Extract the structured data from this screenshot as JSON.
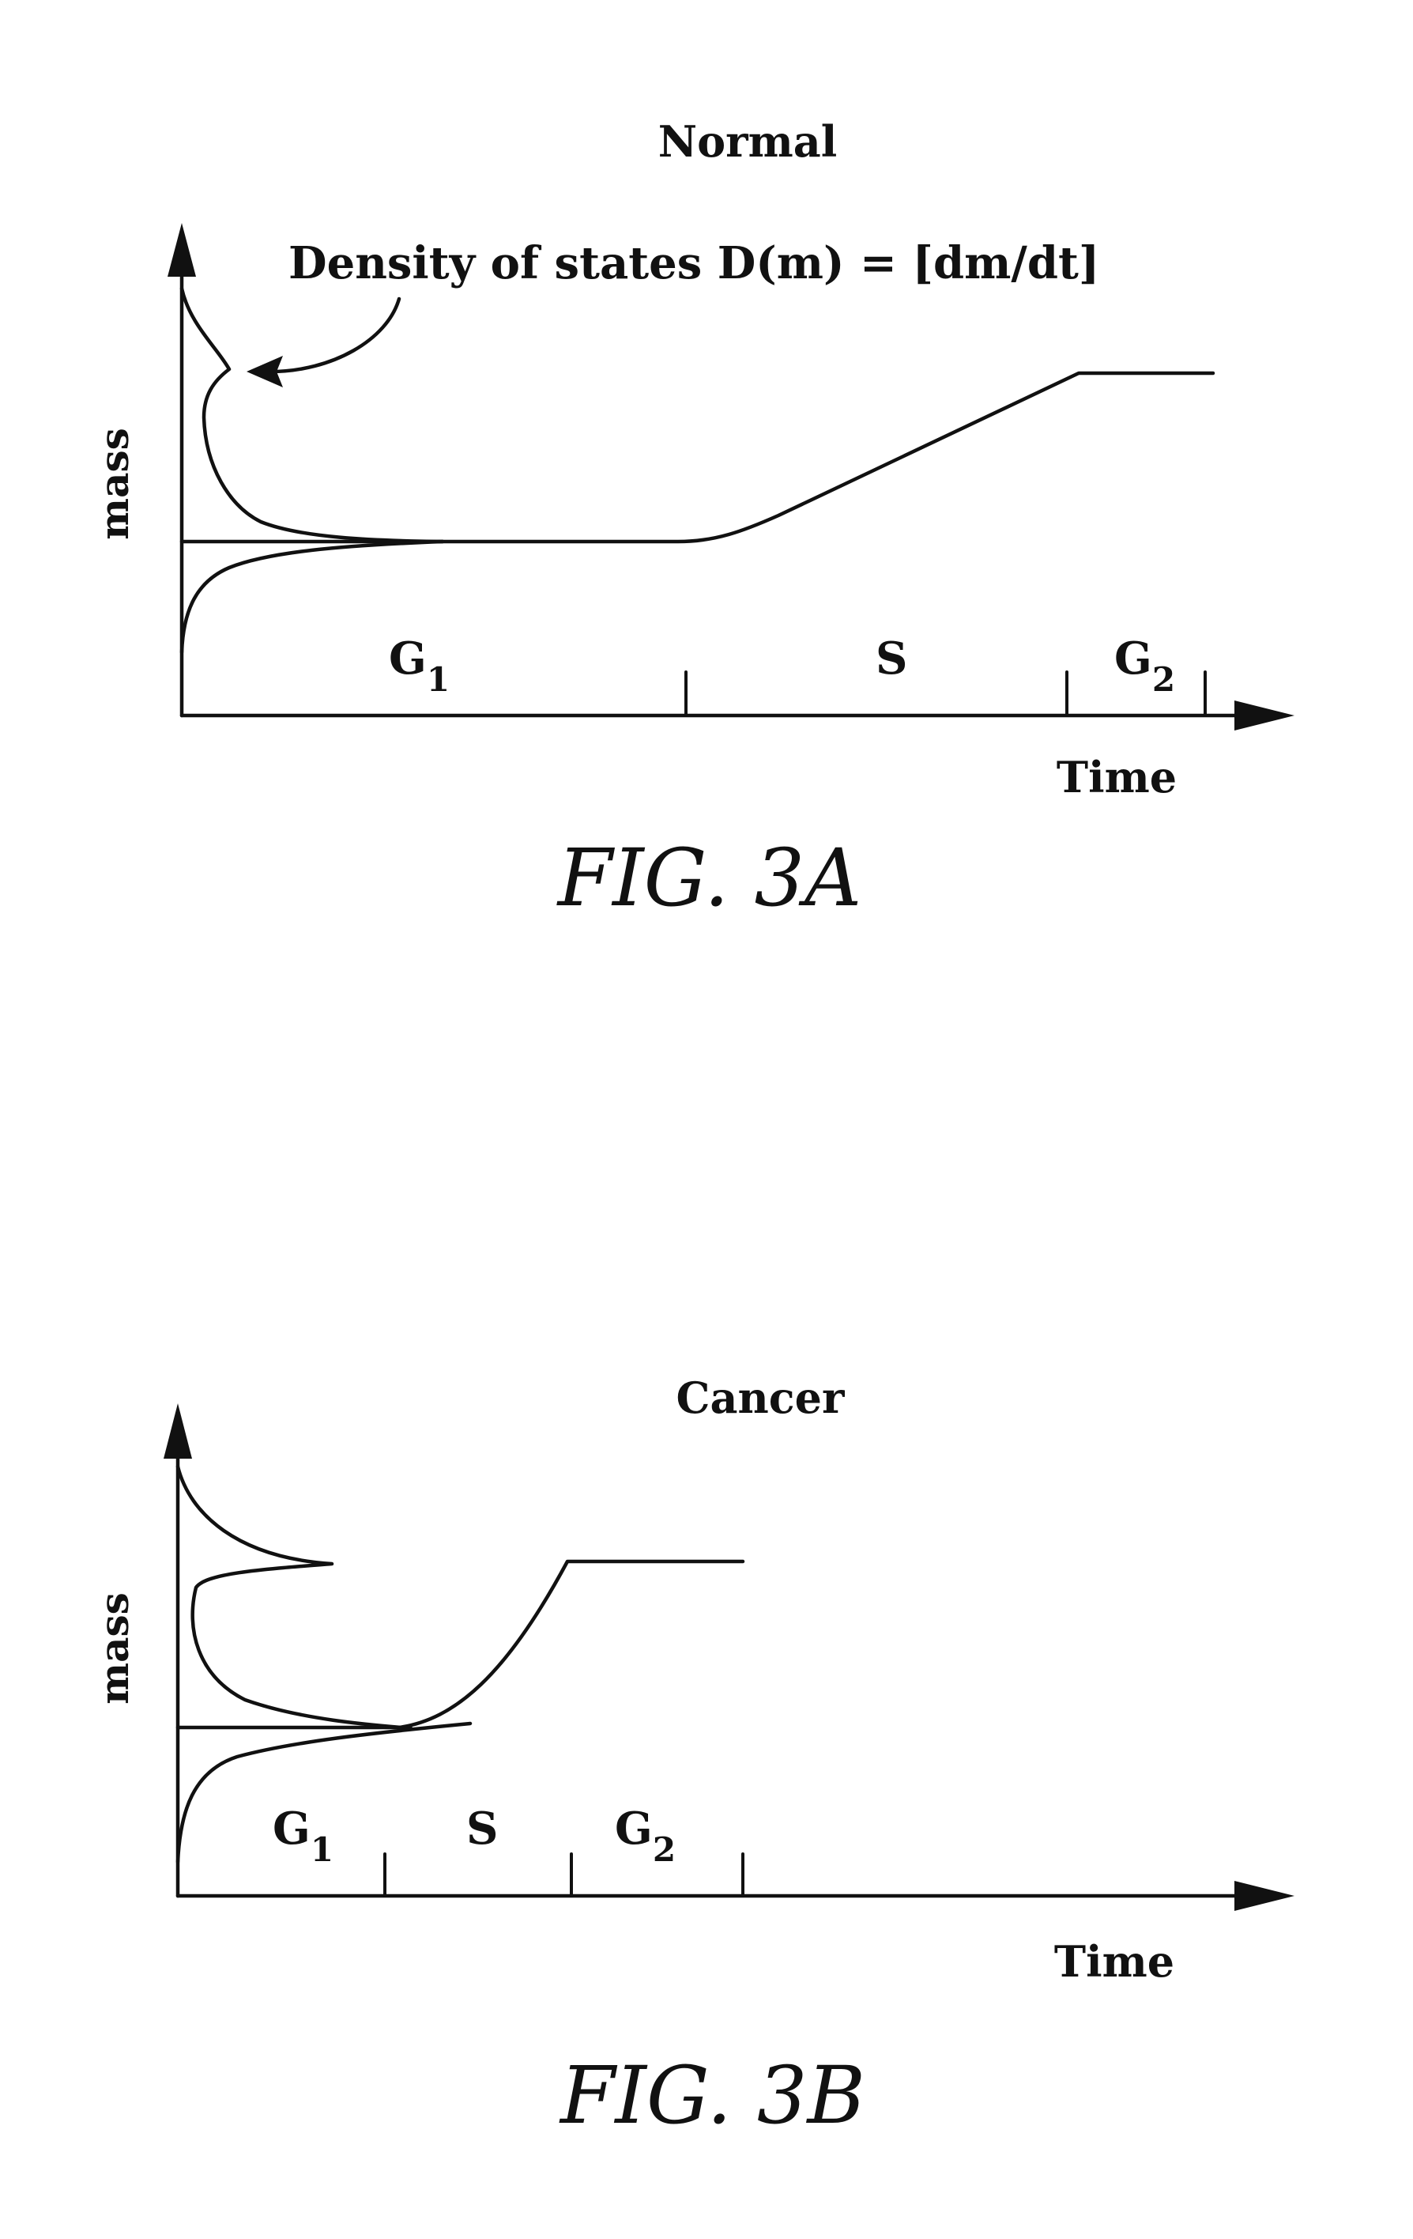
{
  "figures": [
    {
      "title": "Normal",
      "annotation": "Density of states D(m) = [dm/dt]",
      "ylabel": "mass",
      "xlabel": "Time",
      "phases": [
        {
          "label": "G",
          "sub": "1"
        },
        {
          "label": "S",
          "sub": ""
        },
        {
          "label": "G",
          "sub": "2"
        }
      ],
      "caption": "FIG. 3A"
    },
    {
      "title": "Cancer",
      "ylabel": "mass",
      "xlabel": "Time",
      "phases": [
        {
          "label": "G",
          "sub": "1"
        },
        {
          "label": "S",
          "sub": ""
        },
        {
          "label": "G",
          "sub": "2"
        }
      ],
      "caption": "FIG. 3B"
    }
  ]
}
